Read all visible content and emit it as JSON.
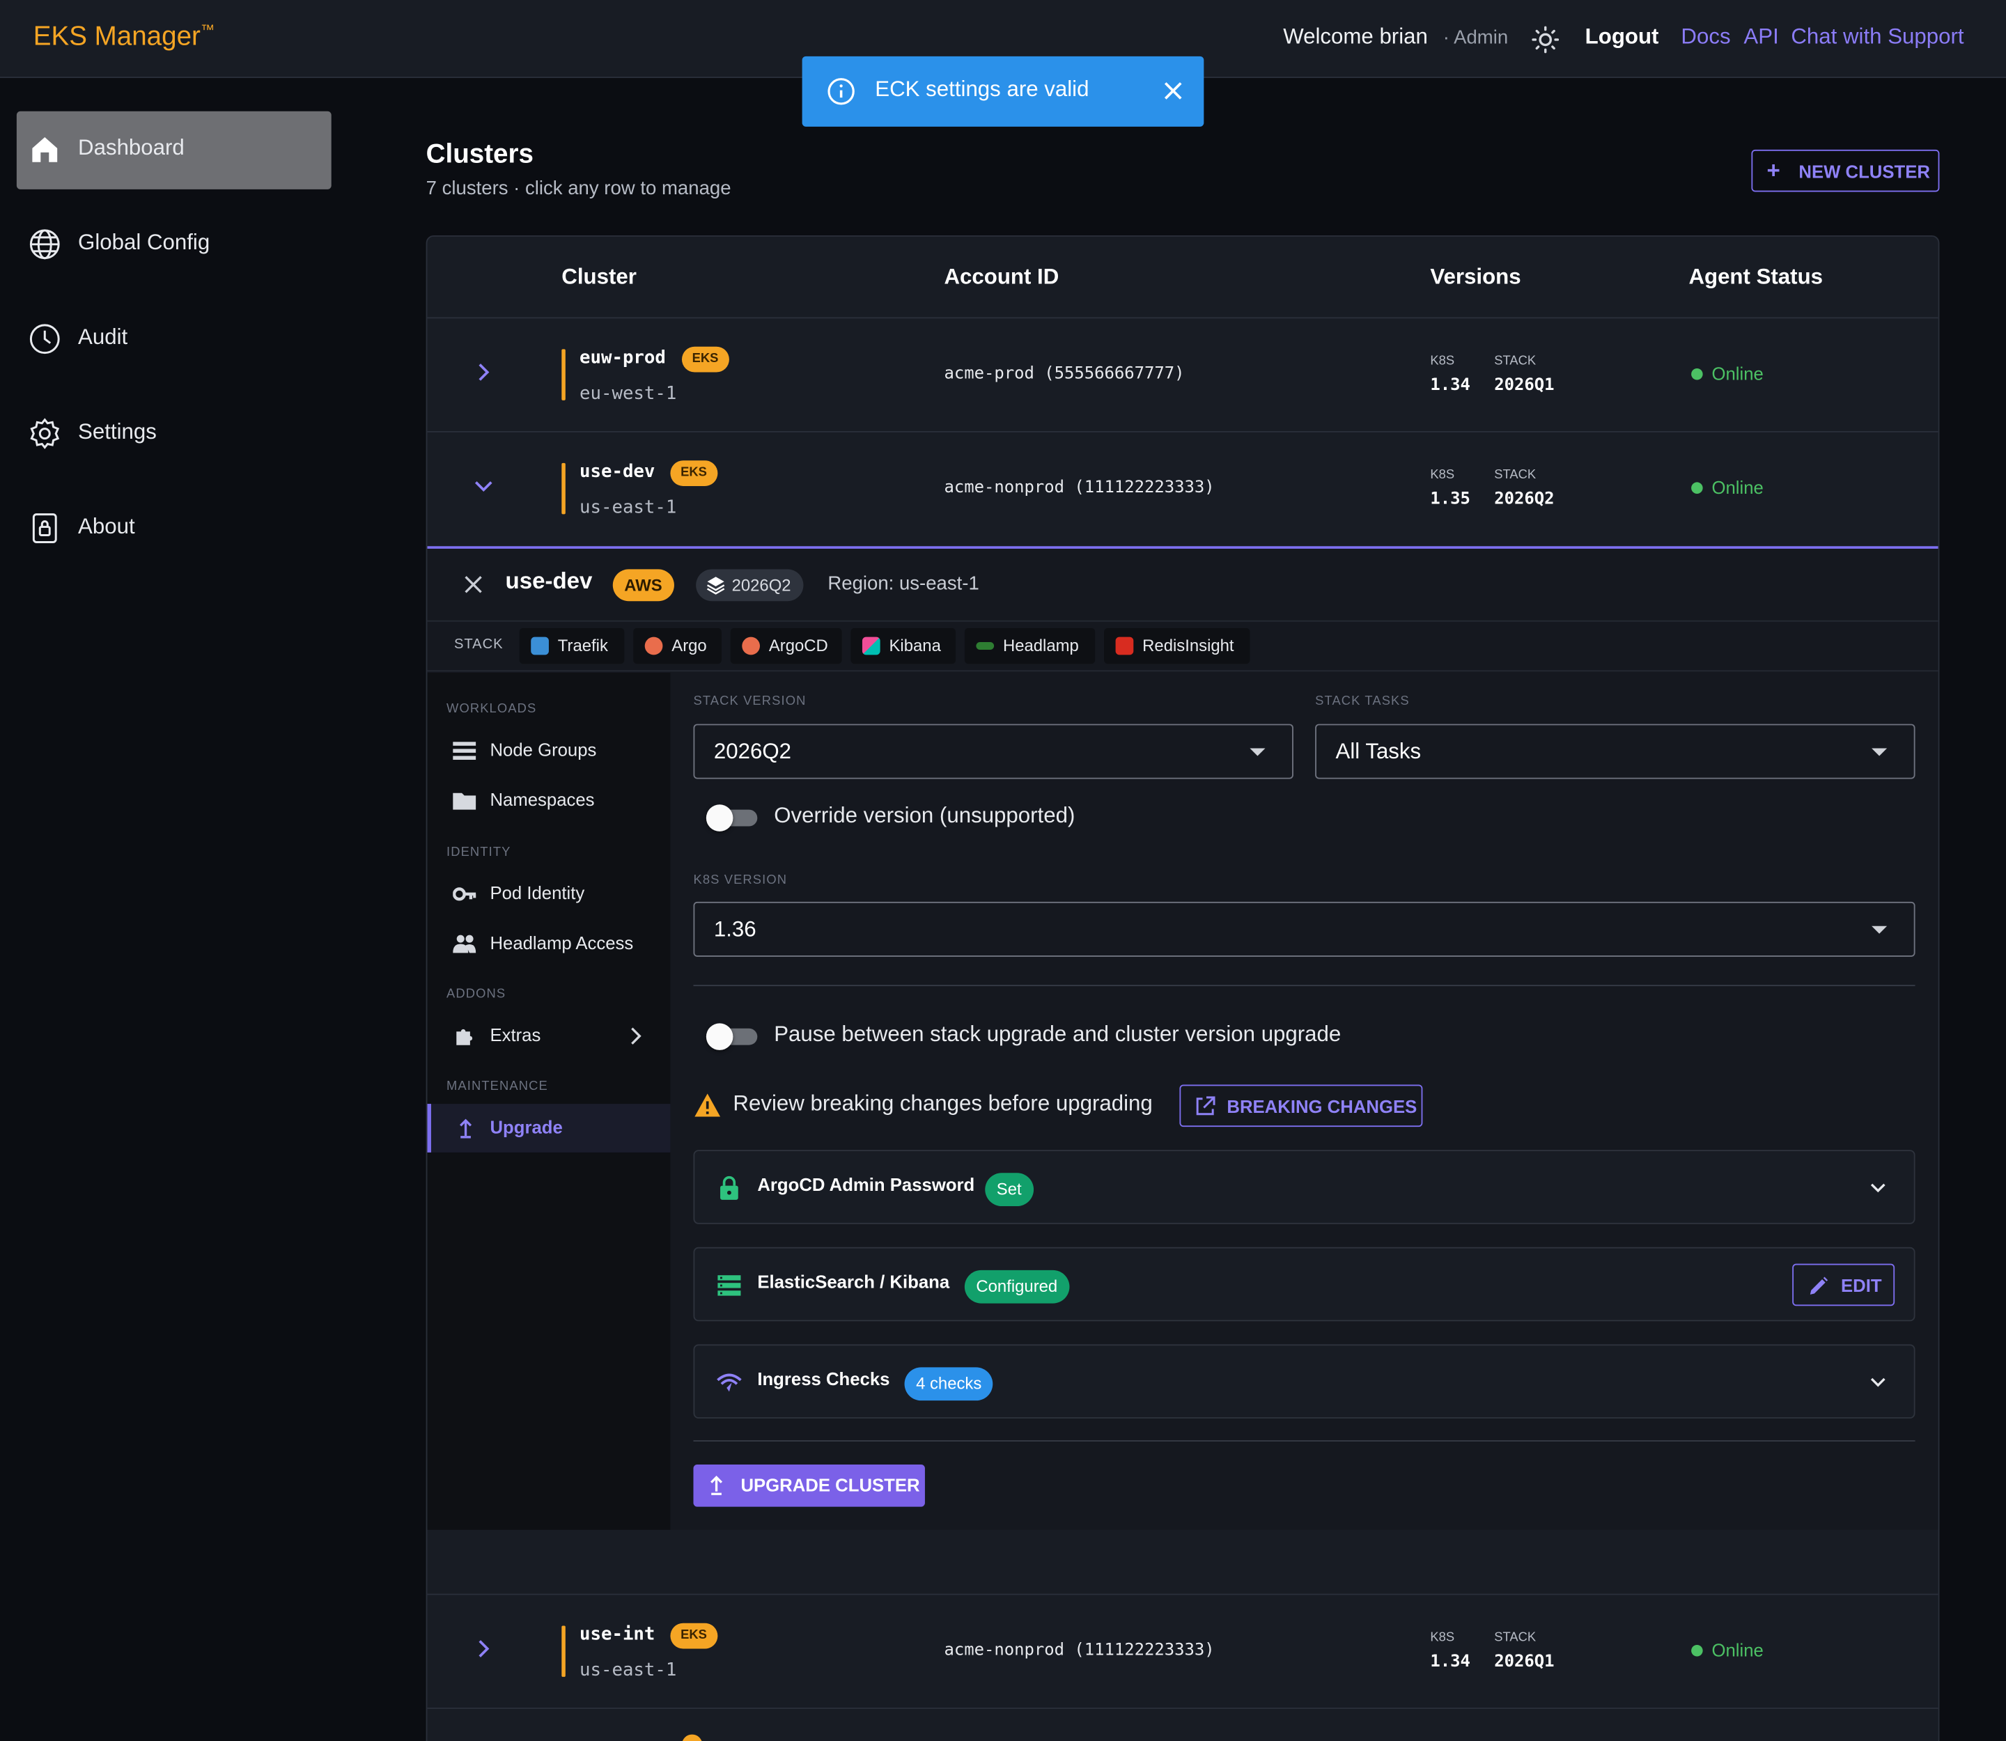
{
  "brand": "EKS Manager",
  "brand_tm": "™",
  "topbar": {
    "welcome": "Welcome brian",
    "role": "· Admin",
    "logout": "Logout",
    "links": [
      "Docs",
      "API",
      "Chat with Support"
    ]
  },
  "toast": {
    "message": "ECK settings are valid"
  },
  "nav": [
    {
      "label": "Dashboard",
      "icon": "home-icon",
      "active": true
    },
    {
      "label": "Global Config",
      "icon": "globe-icon"
    },
    {
      "label": "Audit",
      "icon": "clock-icon"
    },
    {
      "label": "Settings",
      "icon": "gear-icon"
    },
    {
      "label": "About",
      "icon": "lock-icon"
    }
  ],
  "page": {
    "title": "Clusters",
    "subtitle": "7 clusters · click any row to manage",
    "new_cluster": "NEW CLUSTER"
  },
  "table": {
    "headers": [
      "Cluster",
      "Account ID",
      "Versions",
      "Agent Status"
    ],
    "version_labels": {
      "k8s": "K8S",
      "stack": "STACK"
    },
    "rows": [
      {
        "name": "euw-prod",
        "badge": "EKS",
        "region": "eu-west-1",
        "account": "acme-prod (555566667777)",
        "k8s": "1.34",
        "stack": "2026Q1",
        "status": "Online"
      },
      {
        "name": "use-dev",
        "badge": "EKS",
        "region": "us-east-1",
        "account": "acme-nonprod (111122223333)",
        "k8s": "1.35",
        "stack": "2026Q2",
        "status": "Online"
      },
      {
        "name": "use-int",
        "badge": "EKS",
        "region": "us-east-1",
        "account": "acme-nonprod (111122223333)",
        "k8s": "1.34",
        "stack": "2026Q1",
        "status": "Online"
      }
    ]
  },
  "detail": {
    "name": "use-dev",
    "provider": "AWS",
    "stack_version": "2026Q2",
    "region": "Region: us-east-1",
    "stack_label": "STACK",
    "stack_chips": [
      "Traefik",
      "Argo",
      "ArgoCD",
      "Kibana",
      "Headlamp",
      "RedisInsight"
    ],
    "menu": {
      "workloads": "WORKLOADS",
      "node_groups": "Node Groups",
      "namespaces": "Namespaces",
      "identity": "IDENTITY",
      "pod_identity": "Pod Identity",
      "headlamp_access": "Headlamp Access",
      "addons": "ADDONS",
      "extras": "Extras",
      "maintenance": "MAINTENANCE",
      "upgrade": "Upgrade"
    },
    "form": {
      "stack_version_label": "STACK VERSION",
      "stack_version_value": "2026Q2",
      "stack_tasks_label": "STACK TASKS",
      "stack_tasks_value": "All Tasks",
      "override_label": "Override version (unsupported)",
      "k8s_version_label": "K8S VERSION",
      "k8s_version_value": "1.36",
      "pause_label": "Pause between stack upgrade and cluster version upgrade",
      "warning": "Review breaking changes before upgrading",
      "breaking_changes": "BREAKING CHANGES",
      "accordions": [
        {
          "title": "ArgoCD Admin Password",
          "badge": "Set"
        },
        {
          "title": "ElasticSearch / Kibana",
          "badge": "Configured",
          "action": "EDIT"
        },
        {
          "title": "Ingress Checks",
          "badge": "4 checks"
        }
      ],
      "upgrade_button": "UPGRADE CLUSTER"
    }
  },
  "colors": {
    "accent": "#7d6ff0",
    "brand": "#f5a524",
    "online": "#4cc164",
    "toast": "#2b91ea"
  }
}
